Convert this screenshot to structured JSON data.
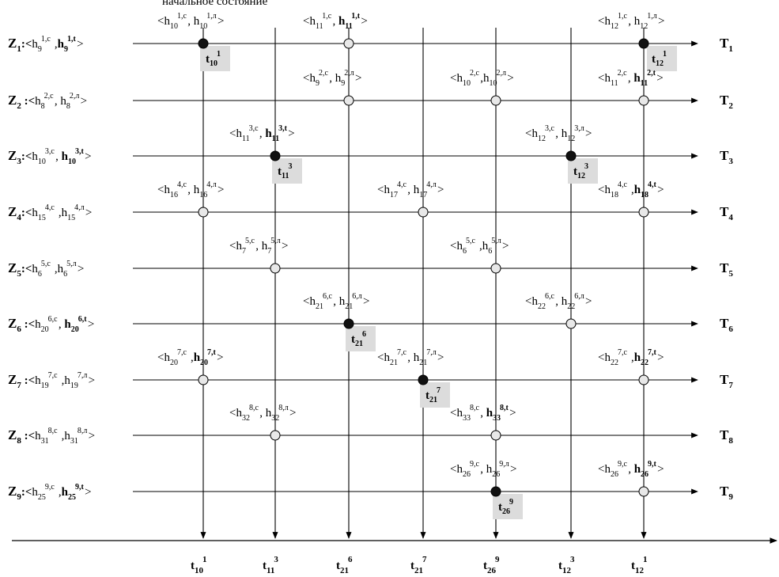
{
  "header_fragment": "начальное состояние",
  "rows": [
    {
      "z": "Z",
      "zi": "1",
      "start": ":<",
      "a_base": "h",
      "a_sub": "9",
      "a_sup": "1,с",
      "sep": " ,",
      "b_base": "h",
      "b_sub": "9",
      "b_sup": "1,t",
      "b_bold": true,
      "close": ">",
      "end_t": "T",
      "end_i": "1"
    },
    {
      "z": "Z",
      "zi": "2",
      "start": " :<",
      "a_base": "h",
      "a_sub": "8",
      "a_sup": "2,с",
      "sep": ",  ",
      "b_base": "h",
      "b_sub": "8",
      "b_sup": "2,л",
      "b_bold": false,
      "close": ">",
      "end_t": "T",
      "end_i": "2"
    },
    {
      "z": "Z",
      "zi": "3",
      "start": ":<",
      "a_base": "h",
      "a_sub": "10",
      "a_sup": "3,с",
      "sep": ",  ",
      "b_base": "h",
      "b_sub": "10",
      "b_sup": "3,t",
      "b_bold": true,
      "close": ">",
      "end_t": "T",
      "end_i": "3"
    },
    {
      "z": "Z",
      "zi": "4",
      "start": ":<",
      "a_base": "h",
      "a_sub": "15",
      "a_sup": "4,с",
      "sep": " ,",
      "b_base": "h",
      "b_sub": "15",
      "b_sup": "4,л",
      "b_bold": false,
      "close": ">",
      "end_t": "T",
      "end_i": "4"
    },
    {
      "z": "Z",
      "zi": "5",
      "start": ":<",
      "a_base": "h",
      "a_sub": "6",
      "a_sup": "5,с",
      "sep": " ,",
      "b_base": "h",
      "b_sub": "6",
      "b_sup": "5,л",
      "b_bold": false,
      "close": ">",
      "end_t": "T",
      "end_i": "5"
    },
    {
      "z": "Z",
      "zi": "6",
      "start": " :<",
      "a_base": "h",
      "a_sub": "20",
      "a_sup": "6,с",
      "sep": ",  ",
      "b_base": "h",
      "b_sub": "20",
      "b_sup": "6,t",
      "b_bold": true,
      "close": ">",
      "end_t": "T",
      "end_i": "6"
    },
    {
      "z": "Z",
      "zi": "7",
      "start": " :<",
      "a_base": "h",
      "a_sub": "19",
      "a_sup": "7,с",
      "sep": " ,",
      "b_base": "h",
      "b_sub": "19",
      "b_sup": "7,л",
      "b_bold": false,
      "close": ">",
      "end_t": "T",
      "end_i": "7"
    },
    {
      "z": "Z",
      "zi": "8",
      "start": " :<",
      "a_base": "h",
      "a_sub": "31",
      "a_sup": "8,с",
      "sep": " ,",
      "b_base": "h",
      "b_sub": "31",
      "b_sup": "8,л",
      "b_bold": false,
      "close": ">",
      "end_t": "T",
      "end_i": "8"
    },
    {
      "z": "Z",
      "zi": "9",
      "start": ":<",
      "a_base": "h",
      "a_sub": "25",
      "a_sup": "9,с",
      "sep": " ,",
      "b_base": "h",
      "b_sub": "25",
      "b_sup": "9,t",
      "b_bold": true,
      "close": ">",
      "end_t": "T",
      "end_i": "9"
    }
  ],
  "bottom_labels": [
    {
      "base": "t",
      "sub": "10",
      "sup": "1"
    },
    {
      "base": "t",
      "sub": "11",
      "sup": "3"
    },
    {
      "base": "t",
      "sub": "21",
      "sup": "6"
    },
    {
      "base": "t",
      "sub": "21",
      "sup": "7"
    },
    {
      "base": "t",
      "sub": "26",
      "sup": "9"
    },
    {
      "base": "t",
      "sub": "12",
      "sup": "3"
    },
    {
      "base": "t",
      "sub": "12",
      "sup": "1"
    }
  ],
  "nodes": [
    {
      "row": 0,
      "col": 0,
      "filled": true,
      "a_sub": "10",
      "a_sup": "1,с",
      "b_sub": "10",
      "b_sup": "1,л",
      "b_bold": false,
      "sep": ",  ",
      "tag": {
        "sub": "10",
        "sup": "1"
      }
    },
    {
      "row": 0,
      "col": 2,
      "filled": false,
      "a_sub": "11",
      "a_sup": "1,с",
      "b_sub": "11",
      "b_sup": "1,t",
      "b_bold": true,
      "sep": ",  "
    },
    {
      "row": 0,
      "col": 6,
      "filled": true,
      "a_sub": "12",
      "a_sup": "1,с",
      "b_sub": "12",
      "b_sup": "1,л",
      "b_bold": false,
      "sep": ",  ",
      "tag": {
        "sub": "12",
        "sup": "1"
      }
    },
    {
      "row": 1,
      "col": 2,
      "filled": false,
      "a_sub": "9",
      "a_sup": "2,с",
      "b_sub": "9",
      "b_sup": "2,л",
      "b_bold": false,
      "sep": ",  "
    },
    {
      "row": 1,
      "col": 4,
      "filled": false,
      "a_sub": "10",
      "a_sup": "2,с",
      "b_sub": "10",
      "b_sup": "2,л",
      "b_bold": false,
      "sep": ","
    },
    {
      "row": 1,
      "col": 6,
      "filled": false,
      "a_sub": "11",
      "a_sup": "2,с",
      "b_sub": "11",
      "b_sup": "2,t",
      "b_bold": true,
      "sep": ",  "
    },
    {
      "row": 2,
      "col": 1,
      "filled": true,
      "a_sub": "11",
      "a_sup": "3,с",
      "b_sub": "11",
      "b_sup": "3,t",
      "b_bold": true,
      "sep": ",  ",
      "tag": {
        "sub": "11",
        "sup": "3"
      }
    },
    {
      "row": 2,
      "col": 5,
      "filled": true,
      "a_sub": "12",
      "a_sup": "3,с",
      "b_sub": "12",
      "b_sup": "3,л",
      "b_bold": false,
      "sep": ",  ",
      "tag": {
        "sub": "12",
        "sup": "3"
      }
    },
    {
      "row": 3,
      "col": 0,
      "filled": false,
      "a_sub": "16",
      "a_sup": "4,с",
      "b_sub": "16",
      "b_sup": "4,л",
      "b_bold": false,
      "sep": ",  "
    },
    {
      "row": 3,
      "col": 3,
      "filled": false,
      "a_sub": "17",
      "a_sup": "4,с",
      "b_sub": "17",
      "b_sup": "4,л",
      "b_bold": false,
      "sep": ",  "
    },
    {
      "row": 3,
      "col": 6,
      "filled": false,
      "a_sub": "18",
      "a_sup": "4,с",
      "b_sub": "18",
      "b_sup": "4,t",
      "b_bold": true,
      "sep": " ,"
    },
    {
      "row": 4,
      "col": 1,
      "filled": false,
      "a_sub": "7",
      "a_sup": "5,с",
      "b_sub": "7",
      "b_sup": "5,л",
      "b_bold": false,
      "sep": ",  "
    },
    {
      "row": 4,
      "col": 4,
      "filled": false,
      "a_sub": "6",
      "a_sup": "5,с",
      "b_sub": "6",
      "b_sup": "5,л",
      "b_bold": false,
      "sep": " ,"
    },
    {
      "row": 5,
      "col": 2,
      "filled": true,
      "a_sub": "21",
      "a_sup": "6,с",
      "b_sub": "21",
      "b_sup": "6,л",
      "b_bold": false,
      "sep": ",  ",
      "tag": {
        "sub": "21",
        "sup": "6"
      }
    },
    {
      "row": 5,
      "col": 5,
      "filled": false,
      "a_sub": "22",
      "a_sup": "6,с",
      "b_sub": "22",
      "b_sup": "6,л",
      "b_bold": false,
      "sep": ",  "
    },
    {
      "row": 6,
      "col": 0,
      "filled": false,
      "a_sub": "20",
      "a_sup": "7,с",
      "b_sub": "20",
      "b_sup": "7,t",
      "b_bold": true,
      "sep": " ,"
    },
    {
      "row": 6,
      "col": 3,
      "filled": true,
      "a_sub": "21",
      "a_sup": "7,с",
      "b_sub": "21",
      "b_sup": "7,л",
      "b_bold": false,
      "sep": ",  ",
      "tag": {
        "sub": "21",
        "sup": "7"
      }
    },
    {
      "row": 6,
      "col": 6,
      "filled": false,
      "a_sub": "22",
      "a_sup": "7,с",
      "b_sub": "22",
      "b_sup": "7,t",
      "b_bold": true,
      "sep": " ,"
    },
    {
      "row": 7,
      "col": 1,
      "filled": false,
      "a_sub": "32",
      "a_sup": "8,с",
      "b_sub": "32",
      "b_sup": "8,л",
      "b_bold": false,
      "sep": ",  "
    },
    {
      "row": 7,
      "col": 4,
      "filled": false,
      "a_sub": "33",
      "a_sup": "8,с",
      "b_sub": "33",
      "b_sup": "8,t",
      "b_bold": true,
      "sep": ",  "
    },
    {
      "row": 8,
      "col": 4,
      "filled": true,
      "a_sub": "26",
      "a_sup": "9,с",
      "b_sub": "26",
      "b_sup": "9,л",
      "b_bold": false,
      "sep": ",  ",
      "tag": {
        "sub": "26",
        "sup": "9"
      }
    },
    {
      "row": 8,
      "col": 6,
      "filled": false,
      "a_sub": "26",
      "a_sup": "9,с",
      "b_sub": "26",
      "b_sup": "9,t",
      "b_bold": true,
      "sep": ",  "
    }
  ],
  "colors": {
    "line": "#000000",
    "node_open_fill": "#e8e8e8",
    "node_filled": "#111111",
    "tag_bg": "#dcdcdc"
  }
}
